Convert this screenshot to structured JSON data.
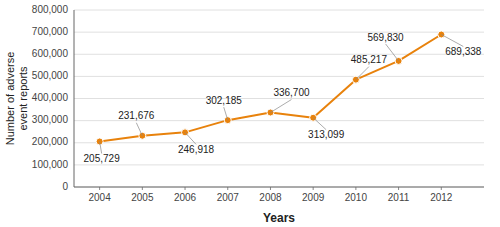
{
  "chart_data": {
    "type": "line",
    "x": [
      2004,
      2005,
      2006,
      2007,
      2008,
      2009,
      2010,
      2011,
      2012
    ],
    "values": [
      205729,
      231676,
      246918,
      302185,
      336700,
      313099,
      485217,
      569830,
      689338
    ],
    "value_labels": [
      "205,729",
      "231,676",
      "246,918",
      "302,185",
      "336,700",
      "313,099",
      "485,217",
      "569,830",
      "689,338"
    ],
    "data_labels": true,
    "color": "#E8820C",
    "marker": "circle",
    "xlabel": "Years",
    "ylabel": "Number of adverse\nevent reports",
    "xlim": [
      2003.4,
      2013.0
    ],
    "xticks": [
      2004,
      2005,
      2006,
      2007,
      2008,
      2009,
      2010,
      2011,
      2012
    ],
    "ylim": [
      0,
      800000
    ],
    "yticks": [
      0,
      {
        "value": 100000,
        "label": "100,000"
      },
      {
        "value": 200000,
        "label": "200,000"
      },
      {
        "value": 300000,
        "label": "300,000"
      },
      {
        "value": 400000,
        "label": "400,000"
      },
      {
        "value": 500000,
        "label": "500,000"
      },
      {
        "value": 600000,
        "label": "600,000"
      },
      {
        "value": 700000,
        "label": "700,000"
      },
      {
        "value": 800000,
        "label": "800,000"
      }
    ],
    "grid": true
  }
}
